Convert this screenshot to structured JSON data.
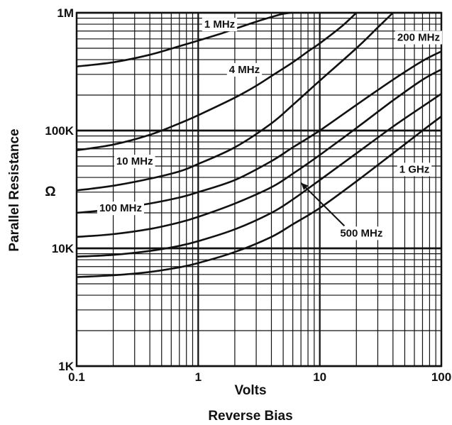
{
  "chart_data": {
    "type": "line",
    "title": "",
    "xlabel": "Volts",
    "xlabel2": "Reverse Bias",
    "ylabel": "Parallel Resistance",
    "yunit": "Ω",
    "xscale": "log",
    "yscale": "log",
    "xlim": [
      0.1,
      100
    ],
    "ylim": [
      1000,
      1000000
    ],
    "grid": true,
    "x_ticks": [
      {
        "value": 0.1,
        "label": "0.1"
      },
      {
        "value": 1,
        "label": "1"
      },
      {
        "value": 10,
        "label": "10"
      },
      {
        "value": 100,
        "label": "100"
      }
    ],
    "y_ticks": [
      {
        "value": 1000,
        "label": "1K"
      },
      {
        "value": 10000,
        "label": "10K"
      },
      {
        "value": 100000,
        "label": "100K"
      },
      {
        "value": 1000000,
        "label": "1M"
      }
    ],
    "series": [
      {
        "name": "1 MHz",
        "label_at": [
          1.5,
          800000
        ],
        "x": [
          0.1,
          0.2,
          0.4,
          0.7,
          1,
          1.5,
          2,
          3,
          4,
          5,
          6
        ],
        "y": [
          350000,
          380000,
          440000,
          520000,
          580000,
          660000,
          730000,
          840000,
          920000,
          980000,
          1000000
        ]
      },
      {
        "name": "4 MHz",
        "label_at": [
          2.4,
          330000
        ],
        "x": [
          0.1,
          0.2,
          0.4,
          0.7,
          1,
          2,
          3,
          4,
          6,
          8,
          10,
          15,
          20
        ],
        "y": [
          68000,
          76000,
          92000,
          115000,
          135000,
          190000,
          240000,
          290000,
          380000,
          470000,
          550000,
          760000,
          1000000
        ]
      },
      {
        "name": "10 MHz",
        "label_at": [
          0.3,
          55000
        ],
        "x": [
          0.1,
          0.2,
          0.4,
          0.7,
          1,
          2,
          4,
          6,
          10,
          20,
          30,
          40
        ],
        "y": [
          31000,
          34000,
          39000,
          45000,
          52000,
          72000,
          115000,
          165000,
          265000,
          500000,
          750000,
          1000000
        ]
      },
      {
        "name": "200 MHz",
        "label_at": [
          65,
          620000
        ],
        "x": [
          0.1,
          0.2,
          0.4,
          0.7,
          1,
          2,
          4,
          6,
          10,
          20,
          40,
          70,
          100
        ],
        "y": [
          20000,
          21500,
          24000,
          27000,
          30000,
          38000,
          55000,
          72000,
          100000,
          165000,
          270000,
          390000,
          470000
        ]
      },
      {
        "name": "100 MHz",
        "label_at": [
          0.23,
          22000
        ],
        "x": [
          0.1,
          0.2,
          0.4,
          0.7,
          1,
          2,
          4,
          6,
          10,
          20,
          40,
          70,
          100
        ],
        "y": [
          12500,
          13200,
          14600,
          16600,
          18500,
          24000,
          33000,
          43000,
          62000,
          105000,
          180000,
          270000,
          330000
        ]
      },
      {
        "name": "500 MHz",
        "label_at": [
          22,
          13500
        ],
        "pointer_to": [
          7,
          36000
        ],
        "x": [
          0.1,
          0.2,
          0.4,
          0.7,
          1,
          2,
          4,
          6,
          10,
          20,
          40,
          70,
          100
        ],
        "y": [
          8500,
          8800,
          9500,
          10500,
          11500,
          14500,
          20000,
          26000,
          38000,
          64000,
          108000,
          160000,
          205000
        ]
      },
      {
        "name": "1 GHz",
        "label_at": [
          60,
          47000
        ],
        "x": [
          0.1,
          0.2,
          0.4,
          0.7,
          1,
          2,
          4,
          6,
          10,
          20,
          40,
          70,
          100
        ],
        "y": [
          5700,
          5900,
          6300,
          6900,
          7500,
          9300,
          12500,
          16000,
          22000,
          37000,
          64000,
          100000,
          132000
        ]
      }
    ]
  }
}
